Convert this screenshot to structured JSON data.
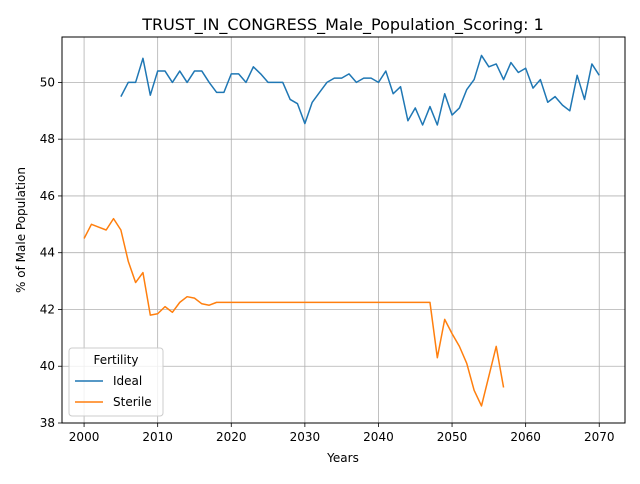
{
  "chart_data": {
    "type": "line",
    "title": "TRUST_IN_CONGRESS_Male_Population_Scoring: 1",
    "xlabel": "Years",
    "ylabel": "% of Male Population",
    "xlim": [
      1997,
      2073.5
    ],
    "ylim": [
      38,
      51.6
    ],
    "x_ticks": [
      2000,
      2010,
      2020,
      2030,
      2040,
      2050,
      2060,
      2070
    ],
    "y_ticks": [
      38,
      40,
      42,
      44,
      46,
      48,
      50
    ],
    "grid": true,
    "legend": {
      "title": "Fertility",
      "placement": "lower-left"
    },
    "series": [
      {
        "name": "Ideal",
        "color": "#1f77b4",
        "x": [
          2005,
          2006,
          2007,
          2008,
          2009,
          2010,
          2011,
          2012,
          2013,
          2014,
          2015,
          2016,
          2017,
          2018,
          2019,
          2020,
          2021,
          2022,
          2023,
          2024,
          2025,
          2026,
          2027,
          2028,
          2029,
          2030,
          2031,
          2032,
          2033,
          2034,
          2035,
          2036,
          2037,
          2038,
          2039,
          2040,
          2041,
          2042,
          2043,
          2044,
          2045,
          2046,
          2047,
          2048,
          2049,
          2050,
          2051,
          2052,
          2053,
          2054,
          2055,
          2056,
          2057,
          2058,
          2059,
          2060,
          2061,
          2062,
          2063,
          2064,
          2065,
          2066,
          2067,
          2068,
          2069,
          2070
        ],
        "values": [
          49.5,
          50.0,
          50.0,
          50.85,
          49.55,
          50.4,
          50.4,
          50.0,
          50.4,
          50.0,
          50.4,
          50.4,
          50.0,
          49.65,
          49.65,
          50.3,
          50.3,
          50.0,
          50.55,
          50.3,
          50.0,
          50.0,
          50.0,
          49.4,
          49.25,
          48.55,
          49.3,
          49.65,
          50.0,
          50.15,
          50.15,
          50.3,
          50.0,
          50.15,
          50.15,
          50.0,
          50.4,
          49.6,
          49.85,
          48.65,
          49.1,
          48.5,
          49.15,
          48.5,
          49.6,
          48.85,
          49.1,
          49.75,
          50.1,
          50.95,
          50.55,
          50.65,
          50.1,
          50.7,
          50.35,
          50.5,
          49.8,
          50.1,
          49.3,
          49.5,
          49.2,
          49.0,
          50.25,
          49.4,
          50.65,
          50.25
        ]
      },
      {
        "name": "Sterile",
        "color": "#ff7f0e",
        "x": [
          2000,
          2001,
          2002,
          2003,
          2004,
          2005,
          2006,
          2007,
          2008,
          2009,
          2010,
          2011,
          2012,
          2013,
          2014,
          2015,
          2016,
          2017,
          2018,
          2019,
          2020,
          2021,
          2022,
          2023,
          2024,
          2025,
          2026,
          2027,
          2028,
          2029,
          2030,
          2031,
          2032,
          2033,
          2034,
          2035,
          2036,
          2037,
          2038,
          2039,
          2040,
          2041,
          2042,
          2043,
          2044,
          2045,
          2046,
          2047,
          2048,
          2049,
          2050,
          2051,
          2052,
          2053,
          2054,
          2055,
          2056,
          2057
        ],
        "values": [
          44.5,
          45.0,
          44.9,
          44.8,
          45.2,
          44.8,
          43.7,
          42.95,
          43.3,
          41.8,
          41.85,
          42.1,
          41.9,
          42.25,
          42.45,
          42.4,
          42.2,
          42.15,
          42.25,
          42.25,
          42.25,
          42.25,
          42.25,
          42.25,
          42.25,
          42.25,
          42.25,
          42.25,
          42.25,
          42.25,
          42.25,
          42.25,
          42.25,
          42.25,
          42.25,
          42.25,
          42.25,
          42.25,
          42.25,
          42.25,
          42.25,
          42.25,
          42.25,
          42.25,
          42.25,
          42.25,
          42.25,
          42.25,
          40.3,
          41.65,
          41.15,
          40.7,
          40.1,
          39.15,
          38.6,
          39.65,
          40.7,
          39.25
        ]
      }
    ]
  }
}
